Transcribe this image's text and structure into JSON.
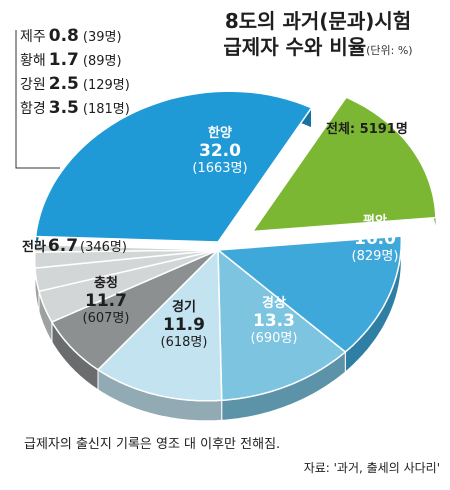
{
  "title_line1": "8도의 과거(문과)시험",
  "title_line2": "급제자 수와 비율",
  "unit": "(단위: %)",
  "total_label": "전체: 5191명",
  "note": "급제자의 출신지 기록은 영조 대 이후만 전해짐.",
  "source": "자료: '과거, 출세의 사다리'",
  "colors": {
    "hanyang": "#1f9ad6",
    "pyeongan": "#7cb733",
    "gyeongsang": "#3fa8da",
    "gyeonggi": "#7cc4e0",
    "chungcheong": "#c2e3ef",
    "jeolla": "#8d9091",
    "small": "#d3d6d7"
  },
  "chart_data": {
    "type": "pie",
    "title": "8도의 과거(문과)시험 급제자 수와 비율",
    "unit": "%",
    "total": "5191명",
    "slices": [
      {
        "name": "한양",
        "value": 32.0,
        "count": "(1663명)"
      },
      {
        "name": "평안",
        "value": 16.0,
        "count": "(829명)"
      },
      {
        "name": "경상",
        "value": 13.3,
        "count": "(690명)"
      },
      {
        "name": "경기",
        "value": 11.9,
        "count": "(618명)"
      },
      {
        "name": "충청",
        "value": 11.7,
        "count": "(607명)"
      },
      {
        "name": "전라",
        "value": 6.7,
        "count": "(346명)"
      },
      {
        "name": "함경",
        "value": 3.5,
        "count": "(181명)"
      },
      {
        "name": "강원",
        "value": 2.5,
        "count": "(129명)"
      },
      {
        "name": "황해",
        "value": 1.7,
        "count": "(89명)"
      },
      {
        "name": "제주",
        "value": 0.8,
        "count": "(39명)"
      }
    ]
  }
}
